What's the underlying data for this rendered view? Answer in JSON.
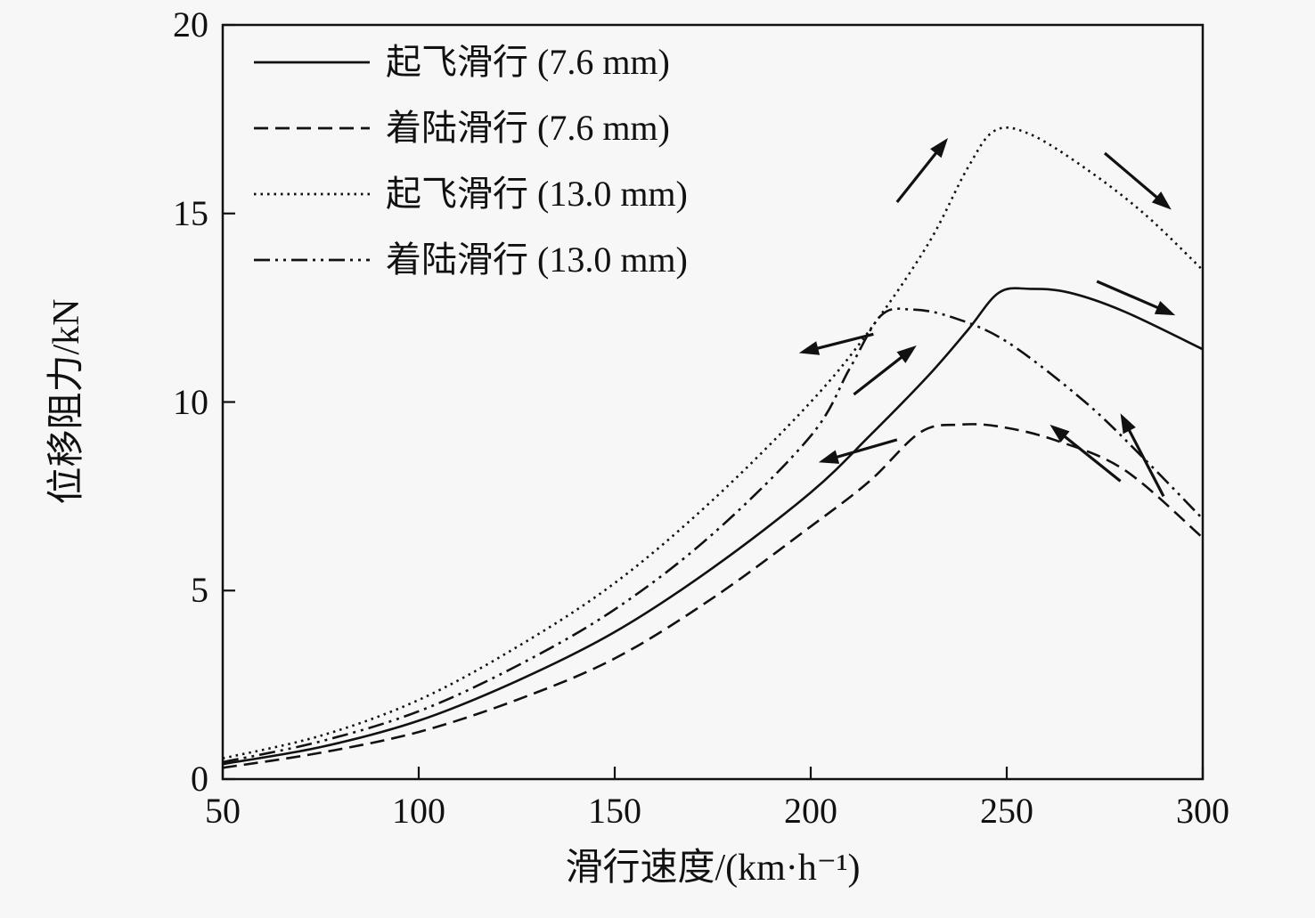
{
  "figure": {
    "background": "#f7f7f7",
    "line_color": "#111111"
  },
  "chart_data": {
    "type": "line",
    "title": "",
    "xlabel": "滑行速度/(km·h⁻¹)",
    "ylabel": "位移阻力/kN",
    "xlim": [
      50,
      300
    ],
    "ylim": [
      0,
      20
    ],
    "xticks": [
      50,
      100,
      150,
      200,
      250,
      300
    ],
    "yticks": [
      0,
      5,
      10,
      15,
      20
    ],
    "grid": false,
    "legend_position": "top-left",
    "series": [
      {
        "name": "起飞滑行 (7.6 mm)",
        "dash": "solid",
        "direction": "takeoff",
        "points": [
          [
            50,
            0.4
          ],
          [
            75,
            0.85
          ],
          [
            100,
            1.55
          ],
          [
            125,
            2.6
          ],
          [
            150,
            3.9
          ],
          [
            175,
            5.6
          ],
          [
            200,
            7.6
          ],
          [
            215,
            9.1
          ],
          [
            230,
            10.7
          ],
          [
            240,
            11.9
          ],
          [
            248,
            12.9
          ],
          [
            256,
            13.0
          ],
          [
            266,
            12.9
          ],
          [
            280,
            12.4
          ],
          [
            300,
            11.4
          ]
        ]
      },
      {
        "name": "着陆滑行 (7.6 mm)",
        "dash": "dashed",
        "direction": "landing",
        "points": [
          [
            50,
            0.3
          ],
          [
            75,
            0.7
          ],
          [
            100,
            1.25
          ],
          [
            125,
            2.1
          ],
          [
            150,
            3.2
          ],
          [
            175,
            4.8
          ],
          [
            200,
            6.7
          ],
          [
            215,
            7.9
          ],
          [
            228,
            9.2
          ],
          [
            238,
            9.4
          ],
          [
            248,
            9.35
          ],
          [
            262,
            9.0
          ],
          [
            280,
            8.2
          ],
          [
            300,
            6.4
          ]
        ]
      },
      {
        "name": "起飞滑行 (13.0 mm)",
        "dash": "dotted",
        "direction": "takeoff",
        "points": [
          [
            50,
            0.55
          ],
          [
            75,
            1.15
          ],
          [
            100,
            2.1
          ],
          [
            125,
            3.5
          ],
          [
            150,
            5.2
          ],
          [
            175,
            7.4
          ],
          [
            200,
            10.0
          ],
          [
            215,
            11.9
          ],
          [
            230,
            14.2
          ],
          [
            240,
            16.2
          ],
          [
            247,
            17.2
          ],
          [
            256,
            17.1
          ],
          [
            270,
            16.2
          ],
          [
            285,
            15.0
          ],
          [
            300,
            13.5
          ]
        ]
      },
      {
        "name": "着陆滑行 (13.0 mm)",
        "dash": "dashdot",
        "direction": "landing",
        "points": [
          [
            50,
            0.45
          ],
          [
            75,
            1.0
          ],
          [
            100,
            1.8
          ],
          [
            125,
            3.0
          ],
          [
            150,
            4.5
          ],
          [
            175,
            6.5
          ],
          [
            200,
            9.1
          ],
          [
            210,
            10.9
          ],
          [
            218,
            12.3
          ],
          [
            226,
            12.45
          ],
          [
            236,
            12.25
          ],
          [
            250,
            11.6
          ],
          [
            270,
            10.0
          ],
          [
            285,
            8.5
          ],
          [
            300,
            6.9
          ]
        ]
      }
    ],
    "arrows": [
      {
        "on": "起飞滑行 (13.0 mm)",
        "from": [
          222,
          15.3
        ],
        "to": [
          235,
          17.0
        ]
      },
      {
        "on": "起飞滑行 (13.0 mm)",
        "from": [
          275,
          16.6
        ],
        "to": [
          292,
          15.1
        ]
      },
      {
        "on": "起飞滑行 (7.6 mm)",
        "from": [
          211,
          10.2
        ],
        "to": [
          227,
          11.5
        ]
      },
      {
        "on": "起飞滑行 (7.6 mm)",
        "from": [
          273,
          13.2
        ],
        "to": [
          293,
          12.3
        ]
      },
      {
        "on": "着陆滑行 (13.0 mm)",
        "from": [
          216,
          11.8
        ],
        "to": [
          197,
          11.3
        ]
      },
      {
        "on": "着陆滑行 (7.6 mm)",
        "from": [
          222,
          9.0
        ],
        "to": [
          202,
          8.4
        ]
      },
      {
        "on": "着陆滑行 (7.6 mm)",
        "from": [
          279,
          7.9
        ],
        "to": [
          261,
          9.4
        ]
      },
      {
        "on": "着陆滑行 (13.0 mm)",
        "from": [
          290,
          7.5
        ],
        "to": [
          279,
          9.7
        ]
      }
    ]
  }
}
